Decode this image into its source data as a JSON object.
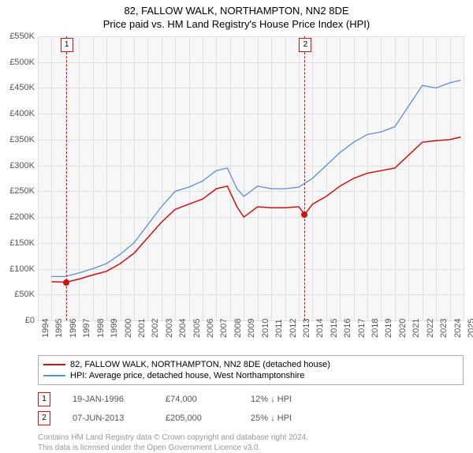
{
  "title": "82, FALLOW WALK, NORTHAMPTON, NN2 8DE",
  "subtitle": "Price paid vs. HM Land Registry's House Price Index (HPI)",
  "chart": {
    "type": "line",
    "background_color": "#f7f7f7",
    "grid_color": "#e0e0e0",
    "ylim": [
      0,
      550000
    ],
    "ytick_step": 50000,
    "yticks": [
      "£0",
      "£50K",
      "£100K",
      "£150K",
      "£200K",
      "£250K",
      "£300K",
      "£350K",
      "£400K",
      "£450K",
      "£500K",
      "£550K"
    ],
    "xlim": [
      1994,
      2025
    ],
    "xticks": [
      1994,
      1995,
      1996,
      1997,
      1998,
      1999,
      2000,
      2001,
      2002,
      2003,
      2004,
      2005,
      2006,
      2007,
      2008,
      2009,
      2010,
      2011,
      2012,
      2013,
      2014,
      2015,
      2016,
      2017,
      2018,
      2019,
      2020,
      2021,
      2022,
      2023,
      2024,
      2025
    ],
    "series": [
      {
        "name": "property",
        "label": "82, FALLOW WALK, NORTHAMPTON, NN2 8DE (detached house)",
        "color": "#cc1212",
        "width": 1.5,
        "data": [
          [
            1995,
            75000
          ],
          [
            1996.05,
            74000
          ],
          [
            1997,
            80000
          ],
          [
            1998,
            88000
          ],
          [
            1999,
            95000
          ],
          [
            2000,
            110000
          ],
          [
            2001,
            130000
          ],
          [
            2002,
            160000
          ],
          [
            2003,
            190000
          ],
          [
            2004,
            215000
          ],
          [
            2005,
            225000
          ],
          [
            2006,
            235000
          ],
          [
            2007,
            255000
          ],
          [
            2007.8,
            260000
          ],
          [
            2008.5,
            220000
          ],
          [
            2009,
            200000
          ],
          [
            2010,
            220000
          ],
          [
            2011,
            218000
          ],
          [
            2012,
            218000
          ],
          [
            2013,
            220000
          ],
          [
            2013.43,
            205000
          ],
          [
            2014,
            225000
          ],
          [
            2015,
            240000
          ],
          [
            2016,
            260000
          ],
          [
            2017,
            275000
          ],
          [
            2018,
            285000
          ],
          [
            2019,
            290000
          ],
          [
            2020,
            295000
          ],
          [
            2021,
            320000
          ],
          [
            2022,
            345000
          ],
          [
            2023,
            348000
          ],
          [
            2024,
            350000
          ],
          [
            2024.8,
            355000
          ]
        ]
      },
      {
        "name": "hpi",
        "label": "HPI: Average price, detached house, West Northamptonshire",
        "color": "#5b8fd6",
        "width": 1.3,
        "data": [
          [
            1995,
            85000
          ],
          [
            1996,
            85000
          ],
          [
            1997,
            92000
          ],
          [
            1998,
            100000
          ],
          [
            1999,
            110000
          ],
          [
            2000,
            128000
          ],
          [
            2001,
            150000
          ],
          [
            2002,
            185000
          ],
          [
            2003,
            220000
          ],
          [
            2004,
            250000
          ],
          [
            2005,
            258000
          ],
          [
            2006,
            270000
          ],
          [
            2007,
            290000
          ],
          [
            2007.8,
            295000
          ],
          [
            2008.5,
            255000
          ],
          [
            2009,
            240000
          ],
          [
            2010,
            260000
          ],
          [
            2011,
            255000
          ],
          [
            2012,
            255000
          ],
          [
            2013,
            258000
          ],
          [
            2014,
            275000
          ],
          [
            2015,
            300000
          ],
          [
            2016,
            325000
          ],
          [
            2017,
            345000
          ],
          [
            2018,
            360000
          ],
          [
            2019,
            365000
          ],
          [
            2020,
            375000
          ],
          [
            2021,
            415000
          ],
          [
            2022,
            455000
          ],
          [
            2023,
            450000
          ],
          [
            2024,
            460000
          ],
          [
            2024.8,
            465000
          ]
        ]
      }
    ],
    "markers": [
      {
        "n": "1",
        "x": 1996.05,
        "y": 74000,
        "color": "#cc1212"
      },
      {
        "n": "2",
        "x": 2013.43,
        "y": 205000,
        "color": "#cc1212"
      }
    ]
  },
  "legend": [
    "82, FALLOW WALK, NORTHAMPTON, NN2 8DE (detached house)",
    "HPI: Average price, detached house, West Northamptonshire"
  ],
  "events": [
    {
      "n": "1",
      "date": "19-JAN-1996",
      "price": "£74,000",
      "delta": "12% ↓ HPI",
      "color": "#cc1212"
    },
    {
      "n": "2",
      "date": "07-JUN-2013",
      "price": "£205,000",
      "delta": "25% ↓ HPI",
      "color": "#cc1212"
    }
  ],
  "footer": {
    "line1": "Contains HM Land Registry data © Crown copyright and database right 2024.",
    "line2": "This data is licensed under the Open Government Licence v3.0."
  }
}
